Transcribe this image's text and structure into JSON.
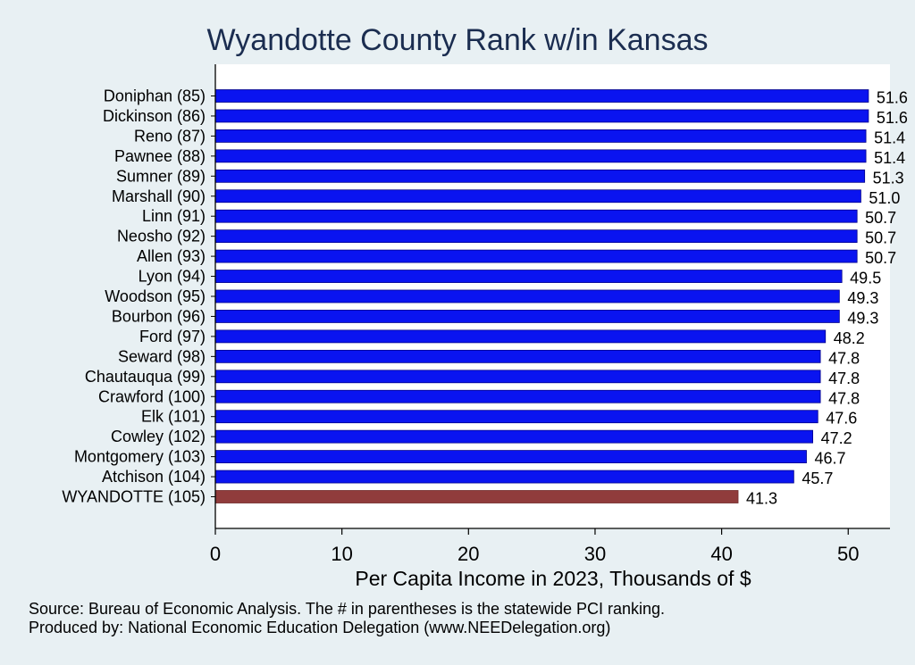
{
  "chart_data": {
    "type": "bar",
    "orientation": "horizontal",
    "title": "Wyandotte County Rank w/in Kansas",
    "xlabel": "Per Capita Income in 2023, Thousands of $",
    "ylabel": "",
    "xlim": [
      0,
      53.3
    ],
    "xticks": [
      0,
      10,
      20,
      30,
      40,
      50
    ],
    "grid": false,
    "categories": [
      "Doniphan (85)",
      "Dickinson (86)",
      "Reno (87)",
      "Pawnee (88)",
      "Sumner (89)",
      "Marshall (90)",
      "Linn (91)",
      "Neosho (92)",
      "Allen (93)",
      "Lyon (94)",
      "Woodson (95)",
      "Bourbon (96)",
      "Ford (97)",
      "Seward (98)",
      "Chautauqua (99)",
      "Crawford (100)",
      "Elk (101)",
      "Cowley (102)",
      "Montgomery (103)",
      "Atchison (104)",
      "WYANDOTTE (105)"
    ],
    "values": [
      51.6,
      51.6,
      51.4,
      51.4,
      51.3,
      51.0,
      50.7,
      50.7,
      50.7,
      49.5,
      49.3,
      49.3,
      48.2,
      47.8,
      47.8,
      47.8,
      47.6,
      47.2,
      46.7,
      45.7,
      41.3
    ],
    "value_labels": [
      "51.6",
      "51.6",
      "51.4",
      "51.4",
      "51.3",
      "51.0",
      "50.7",
      "50.7",
      "50.7",
      "49.5",
      "49.3",
      "49.3",
      "48.2",
      "47.8",
      "47.8",
      "47.8",
      "47.6",
      "47.2",
      "46.7",
      "45.7",
      "41.3"
    ],
    "highlight_category": "WYANDOTTE (105)",
    "colors": {
      "bar": "#0a14f0",
      "highlight": "#903c3c",
      "plot_bg": "#ffffff",
      "page_bg": "#e8f0f3",
      "title": "#1b2d50"
    }
  },
  "footer": {
    "source": "Source: Bureau of Economic Analysis. The # in parentheses is the statewide PCI ranking.",
    "produced_by": "Produced by: National Economic Education Delegation (www.NEEDelegation.org)"
  }
}
